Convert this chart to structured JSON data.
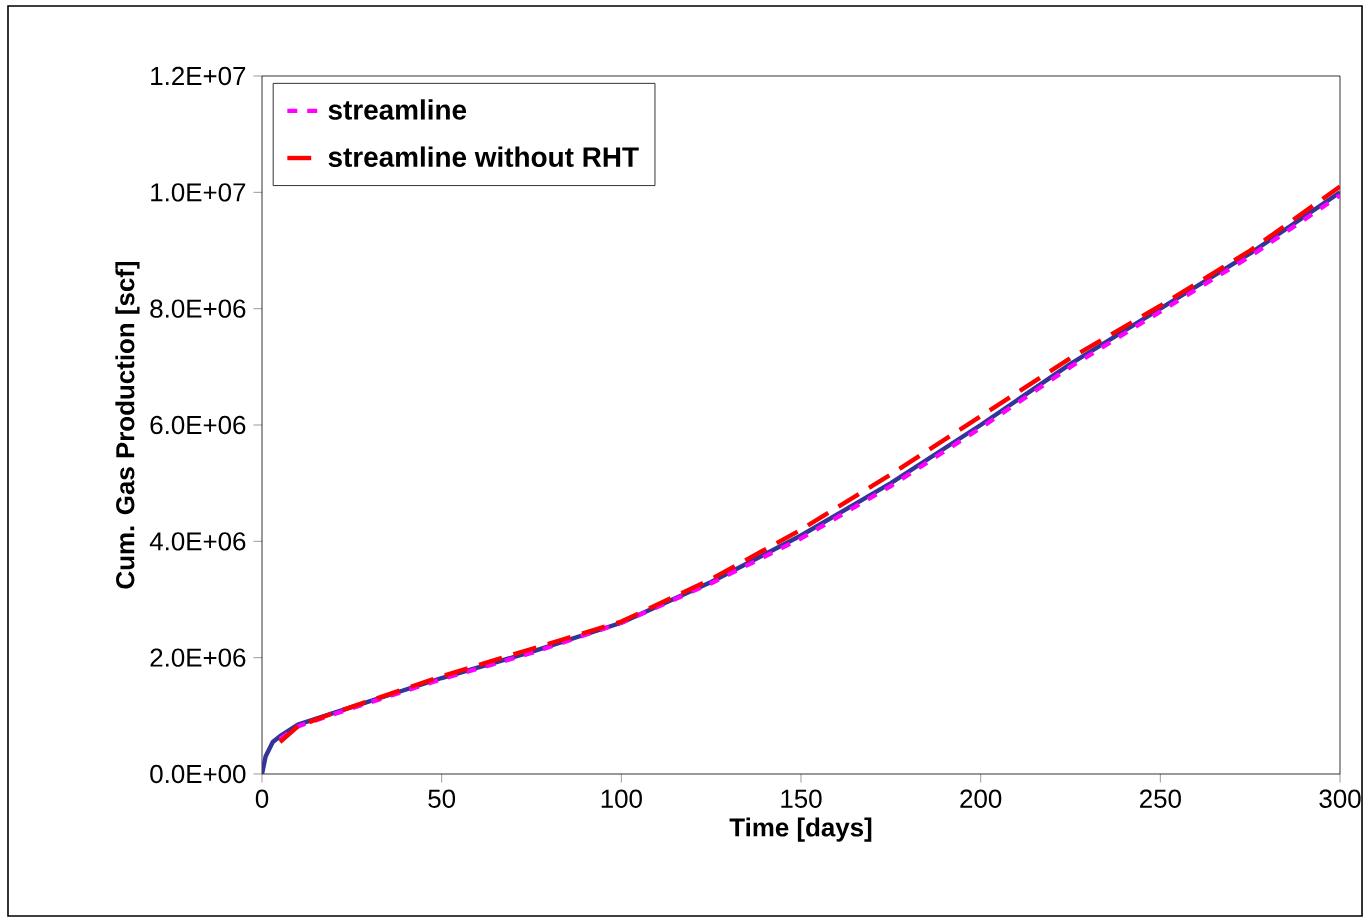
{
  "chart_data": {
    "type": "line",
    "xlabel": "Time [days]",
    "ylabel": "Cum. Gas Production [scf]",
    "xlim": [
      0,
      300
    ],
    "ylim": [
      0,
      12000000
    ],
    "xticks": [
      0,
      50,
      100,
      150,
      200,
      250,
      300
    ],
    "yticks": [
      {
        "value": 0,
        "label": "0.0E+00"
      },
      {
        "value": 2000000,
        "label": "2.0E+06"
      },
      {
        "value": 4000000,
        "label": "4.0E+06"
      },
      {
        "value": 6000000,
        "label": "6.0E+06"
      },
      {
        "value": 8000000,
        "label": "8.0E+06"
      },
      {
        "value": 10000000,
        "label": "1.0E+07"
      },
      {
        "value": 12000000,
        "label": "1.2E+07"
      }
    ],
    "grid": false,
    "legend": "top left",
    "marker": "none",
    "series": [
      {
        "color": "#333399",
        "line_style": "solid",
        "x": [
          0,
          1,
          3,
          5,
          10,
          20,
          50,
          75,
          100,
          125,
          150,
          175,
          200,
          225,
          250,
          275,
          300
        ],
        "values": [
          0,
          300000,
          550000,
          650000,
          850000,
          1050000,
          1650000,
          2100000,
          2600000,
          3300000,
          4100000,
          5000000,
          6000000,
          7050000,
          8000000,
          8950000,
          10000000
        ]
      },
      {
        "name": "streamline",
        "color": "#ff00ff",
        "line_style": "dotted",
        "x": [
          5,
          10,
          20,
          50,
          75,
          100,
          125,
          150,
          175,
          200,
          225,
          250,
          275,
          300
        ],
        "values": [
          600000,
          820000,
          1030000,
          1630000,
          2080000,
          2600000,
          3280000,
          4050000,
          4950000,
          5950000,
          7000000,
          7950000,
          8900000,
          9950000
        ]
      },
      {
        "name": "streamline without RHT",
        "color": "#ff0000",
        "line_style": "dashed",
        "x": [
          5,
          10,
          20,
          50,
          75,
          100,
          125,
          150,
          175,
          200,
          225,
          250,
          275,
          300
        ],
        "values": [
          550000,
          820000,
          1050000,
          1680000,
          2150000,
          2620000,
          3350000,
          4200000,
          5150000,
          6150000,
          7150000,
          8050000,
          9000000,
          10100000
        ]
      }
    ]
  }
}
